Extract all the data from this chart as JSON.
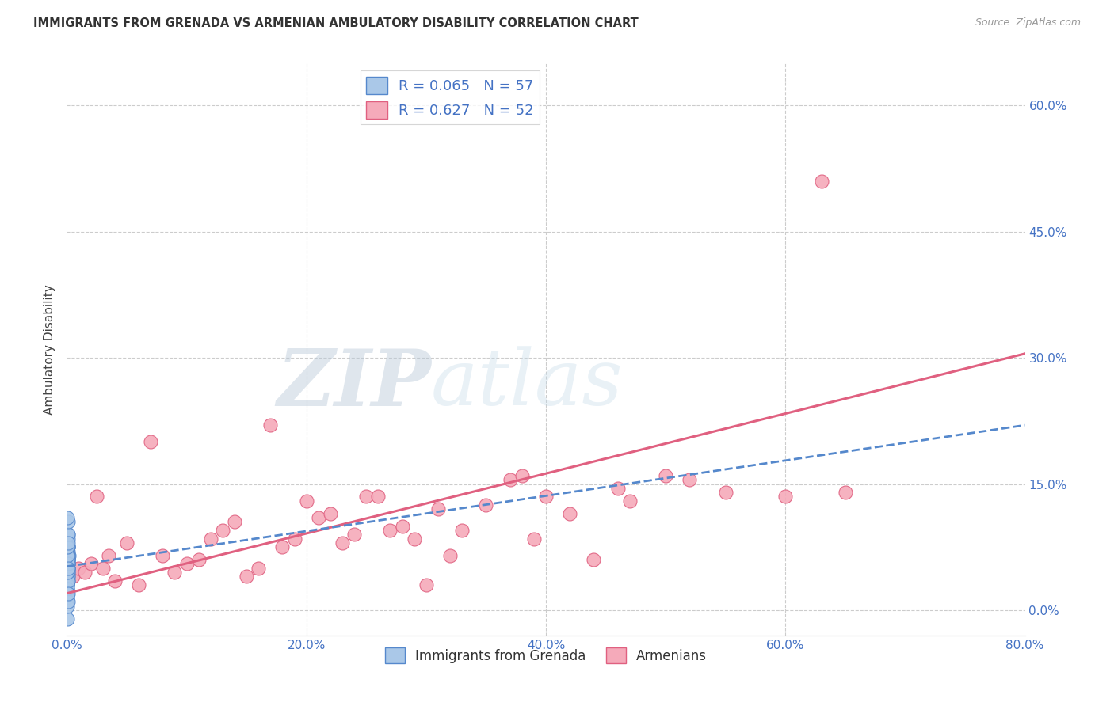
{
  "title": "IMMIGRANTS FROM GRENADA VS ARMENIAN AMBULATORY DISABILITY CORRELATION CHART",
  "source": "Source: ZipAtlas.com",
  "xlabel_vals": [
    0.0,
    20.0,
    40.0,
    60.0,
    80.0
  ],
  "ylabel": "Ambulatory Disability",
  "ylabel_vals_right": [
    0.0,
    15.0,
    30.0,
    45.0,
    60.0
  ],
  "xmin": 0.0,
  "xmax": 80.0,
  "ymin": -3.0,
  "ymax": 65.0,
  "blue_R": 0.065,
  "blue_N": 57,
  "pink_R": 0.627,
  "pink_N": 52,
  "blue_color": "#aac8e8",
  "pink_color": "#f5aaba",
  "blue_line_color": "#5588cc",
  "pink_line_color": "#e06080",
  "legend_blue_label": "Immigrants from Grenada",
  "legend_pink_label": "Armenians",
  "watermark_zip_color": "#c8d8e8",
  "watermark_atlas_color": "#b8cfe8",
  "blue_dots_x": [
    0.05,
    0.08,
    0.1,
    0.12,
    0.15,
    0.05,
    0.07,
    0.06,
    0.09,
    0.11,
    0.13,
    0.1,
    0.08,
    0.06,
    0.07,
    0.05,
    0.04,
    0.09,
    0.11,
    0.13,
    0.06,
    0.09,
    0.12,
    0.06,
    0.04,
    0.08,
    0.1,
    0.07,
    0.09,
    0.07,
    0.1,
    0.13,
    0.06,
    0.07,
    0.09,
    0.11,
    0.08,
    0.05,
    0.08,
    0.11,
    0.14,
    0.05,
    0.07,
    0.08,
    0.06,
    0.09,
    0.04,
    0.06,
    0.09,
    0.12,
    0.05,
    0.06,
    0.08,
    0.11,
    0.07,
    0.1,
    0.12
  ],
  "blue_dots_y": [
    5.5,
    5.0,
    6.0,
    5.5,
    6.5,
    4.0,
    4.5,
    3.5,
    7.0,
    6.0,
    7.5,
    5.0,
    4.5,
    6.5,
    5.5,
    4.0,
    3.0,
    5.5,
    6.0,
    5.0,
    3.5,
    4.0,
    6.5,
    2.5,
    2.0,
    3.5,
    5.5,
    4.5,
    6.0,
    7.0,
    7.5,
    8.5,
    2.0,
    3.0,
    4.0,
    7.5,
    6.5,
    3.0,
    4.5,
    7.5,
    9.0,
    1.5,
    2.5,
    3.5,
    4.5,
    5.5,
    6.5,
    7.5,
    9.0,
    10.5,
    -1.0,
    0.5,
    1.0,
    2.0,
    11.0,
    5.0,
    8.0
  ],
  "pink_dots_x": [
    0.5,
    1.0,
    1.5,
    2.0,
    2.5,
    3.0,
    3.5,
    4.0,
    5.0,
    6.0,
    7.0,
    8.0,
    9.0,
    10.0,
    11.0,
    12.0,
    13.0,
    14.0,
    15.0,
    16.0,
    17.0,
    18.0,
    19.0,
    20.0,
    21.0,
    22.0,
    23.0,
    24.0,
    25.0,
    26.0,
    27.0,
    28.0,
    29.0,
    30.0,
    31.0,
    32.0,
    33.0,
    35.0,
    37.0,
    38.0,
    39.0,
    40.0,
    42.0,
    44.0,
    46.0,
    47.0,
    50.0,
    52.0,
    55.0,
    60.0,
    63.0,
    65.0
  ],
  "pink_dots_y": [
    4.0,
    5.0,
    4.5,
    5.5,
    13.5,
    5.0,
    6.5,
    3.5,
    8.0,
    3.0,
    20.0,
    6.5,
    4.5,
    5.5,
    6.0,
    8.5,
    9.5,
    10.5,
    4.0,
    5.0,
    22.0,
    7.5,
    8.5,
    13.0,
    11.0,
    11.5,
    8.0,
    9.0,
    13.5,
    13.5,
    9.5,
    10.0,
    8.5,
    3.0,
    12.0,
    6.5,
    9.5,
    12.5,
    15.5,
    16.0,
    8.5,
    13.5,
    11.5,
    6.0,
    14.5,
    13.0,
    16.0,
    15.5,
    14.0,
    13.5,
    51.0,
    14.0
  ],
  "blue_trend_x": [
    0.0,
    80.0
  ],
  "blue_trend_y_start": 5.2,
  "blue_trend_y_end": 22.0,
  "pink_trend_x": [
    0.0,
    80.0
  ],
  "pink_trend_y_start": 2.0,
  "pink_trend_y_end": 30.5
}
